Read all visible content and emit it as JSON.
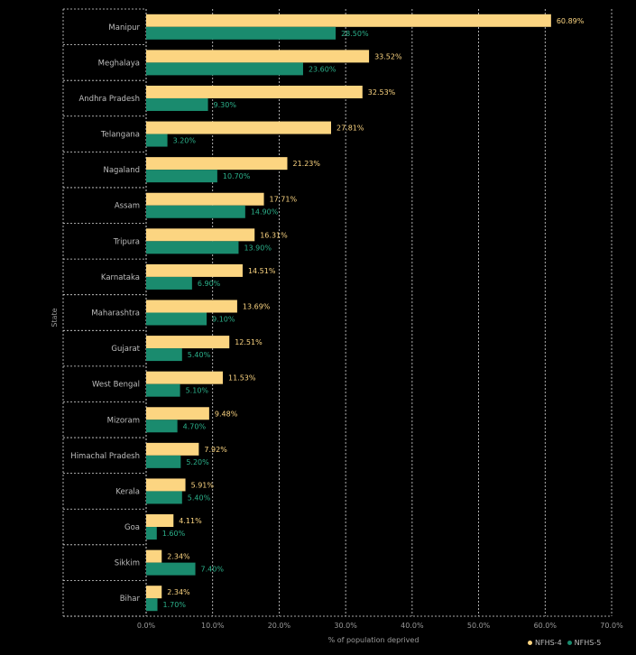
{
  "chart_data": {
    "type": "bar",
    "orientation": "horizontal",
    "xlabel": "% of population deprived",
    "ylabel": "State",
    "xlim": [
      0,
      70
    ],
    "x_ticks": [
      "0.0%",
      "10.0%",
      "20.0%",
      "30.0%",
      "40.0%",
      "50.0%",
      "60.0%",
      "70.0%"
    ],
    "legend_position": "bottom-right",
    "grid": true,
    "categories": [
      "Manipur",
      "Meghalaya",
      "Andhra Pradesh",
      "Telangana",
      "Nagaland",
      "Assam",
      "Tripura",
      "Karnataka",
      "Maharashtra",
      "Gujarat",
      "West Bengal",
      "Mizoram",
      "Himachal Pradesh",
      "Kerala",
      "Goa",
      "Sikkim",
      "Bihar"
    ],
    "series": [
      {
        "name": "NFHS-4",
        "color": "#fcd581",
        "values": [
          60.89,
          33.52,
          32.53,
          27.81,
          21.23,
          17.71,
          16.31,
          14.51,
          13.69,
          12.51,
          11.53,
          9.48,
          7.92,
          5.91,
          4.11,
          2.34,
          2.34
        ],
        "labels": [
          "60.89%",
          "33.52%",
          "32.53%",
          "27.81%",
          "21.23%",
          "17.71%",
          "16.31%",
          "14.51%",
          "13.69%",
          "12.51%",
          "11.53%",
          "9.48%",
          "7.92%",
          "5.91%",
          "4.11%",
          "2.34%",
          "2.34%"
        ]
      },
      {
        "name": "NFHS-5",
        "color": "#1a8b6e",
        "values": [
          28.5,
          23.6,
          9.3,
          3.2,
          10.7,
          14.9,
          13.9,
          6.9,
          9.1,
          5.4,
          5.1,
          4.7,
          5.2,
          5.4,
          1.6,
          7.4,
          1.7
        ],
        "labels": [
          "28.50%",
          "23.60%",
          "9.30%",
          "3.20%",
          "10.70%",
          "14.90%",
          "13.90%",
          "6.90%",
          "9.10%",
          "5.40%",
          "5.10%",
          "4.70%",
          "5.20%",
          "5.40%",
          "1.60%",
          "7.40%",
          "1.70%"
        ]
      }
    ]
  }
}
